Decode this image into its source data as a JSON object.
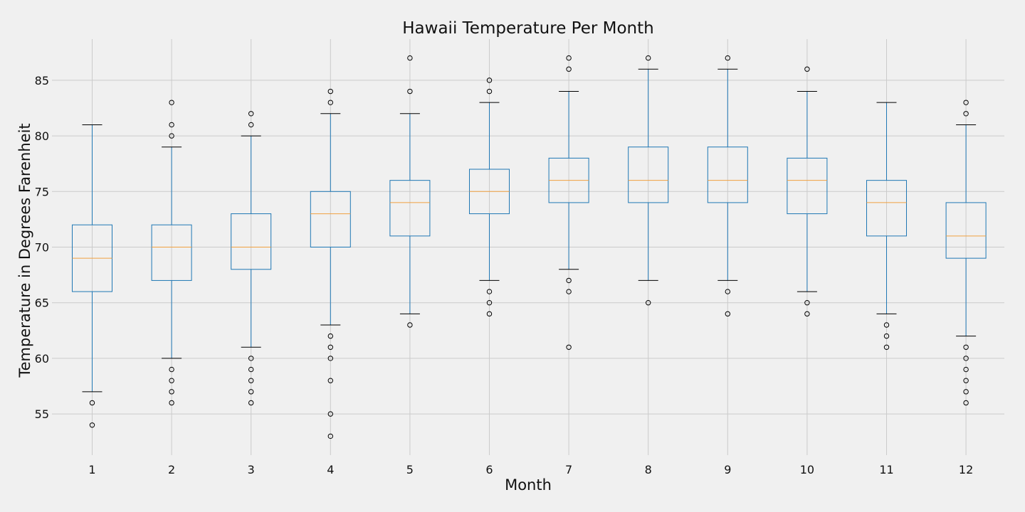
{
  "chart_data": {
    "type": "box",
    "title": "Hawaii Temperature Per Month",
    "xlabel": "Month",
    "ylabel": "Temperature in Degrees Farenheit",
    "categories": [
      "1",
      "2",
      "3",
      "4",
      "5",
      "6",
      "7",
      "8",
      "9",
      "10",
      "11",
      "12"
    ],
    "ylim": [
      51.3,
      88.7
    ],
    "yticks": [
      55,
      60,
      65,
      70,
      75,
      80,
      85
    ],
    "grid": true,
    "colors": {
      "box": "#1f77b4",
      "median": "#f0a040",
      "whisker_cap": "#000000",
      "outlier": "#000000",
      "grid": "#cbcbcb",
      "background": "#f0f0f0"
    },
    "boxes": [
      {
        "category": "1",
        "whislo": 57,
        "q1": 66,
        "median": 69,
        "q3": 72,
        "whishi": 81,
        "fliers": [
          56,
          54
        ]
      },
      {
        "category": "2",
        "whislo": 60,
        "q1": 67,
        "median": 70,
        "q3": 72,
        "whishi": 79,
        "fliers": [
          59,
          58,
          57,
          56,
          80,
          81,
          83
        ]
      },
      {
        "category": "3",
        "whislo": 61,
        "q1": 68,
        "median": 70,
        "q3": 73,
        "whishi": 80,
        "fliers": [
          60,
          59,
          58,
          57,
          56,
          81,
          82
        ]
      },
      {
        "category": "4",
        "whislo": 63,
        "q1": 70,
        "median": 73,
        "q3": 75,
        "whishi": 82,
        "fliers": [
          62,
          61,
          60,
          58,
          55,
          53,
          83,
          84
        ]
      },
      {
        "category": "5",
        "whislo": 64,
        "q1": 71,
        "median": 74,
        "q3": 76,
        "whishi": 82,
        "fliers": [
          63,
          84,
          87
        ]
      },
      {
        "category": "6",
        "whislo": 67,
        "q1": 73,
        "median": 75,
        "q3": 77,
        "whishi": 83,
        "fliers": [
          66,
          65,
          64,
          84,
          85
        ]
      },
      {
        "category": "7",
        "whislo": 68,
        "q1": 74,
        "median": 76,
        "q3": 78,
        "whishi": 84,
        "fliers": [
          67,
          66,
          61,
          86,
          87
        ]
      },
      {
        "category": "8",
        "whislo": 67,
        "q1": 74,
        "median": 76,
        "q3": 79,
        "whishi": 86,
        "fliers": [
          65,
          87
        ]
      },
      {
        "category": "9",
        "whislo": 67,
        "q1": 74,
        "median": 76,
        "q3": 79,
        "whishi": 86,
        "fliers": [
          66,
          64,
          87
        ]
      },
      {
        "category": "10",
        "whislo": 66,
        "q1": 73,
        "median": 76,
        "q3": 78,
        "whishi": 84,
        "fliers": [
          65,
          64,
          86
        ]
      },
      {
        "category": "11",
        "whislo": 64,
        "q1": 71,
        "median": 74,
        "q3": 76,
        "whishi": 83,
        "fliers": [
          63,
          62,
          61
        ]
      },
      {
        "category": "12",
        "whislo": 62,
        "q1": 69,
        "median": 71,
        "q3": 74,
        "whishi": 81,
        "fliers": [
          61,
          60,
          59,
          58,
          57,
          56,
          82,
          83
        ]
      }
    ]
  }
}
